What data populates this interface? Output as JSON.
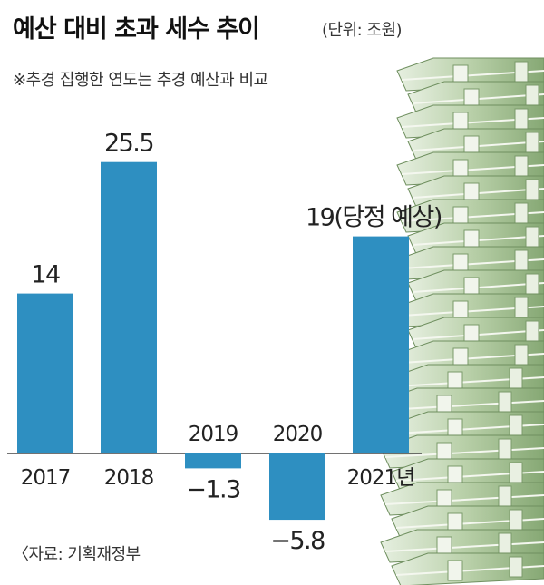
{
  "header": {
    "title": "예산 대비 초과 세수 추이",
    "unit": "(단위: 조원)",
    "note": "※추경 집행한 연도는 추경 예산과 비교"
  },
  "footer": {
    "source": "〈자료: 기획재정부"
  },
  "colors": {
    "bar": "#2e8fc1",
    "axis": "#444444",
    "text": "#222222"
  },
  "chart_data": {
    "type": "bar",
    "title": "예산 대비 초과 세수 추이",
    "unit": "(단위: 조원)",
    "categories": [
      "2017",
      "2018",
      "2019",
      "2020",
      "2021년"
    ],
    "values": [
      14,
      25.5,
      -1.3,
      -5.8,
      19
    ],
    "value_labels": [
      "14",
      "25.5",
      "−1.3",
      "−5.8",
      "19(당정 예상)"
    ],
    "ylim": [
      -6,
      26
    ],
    "grid": false,
    "legend": "none"
  }
}
